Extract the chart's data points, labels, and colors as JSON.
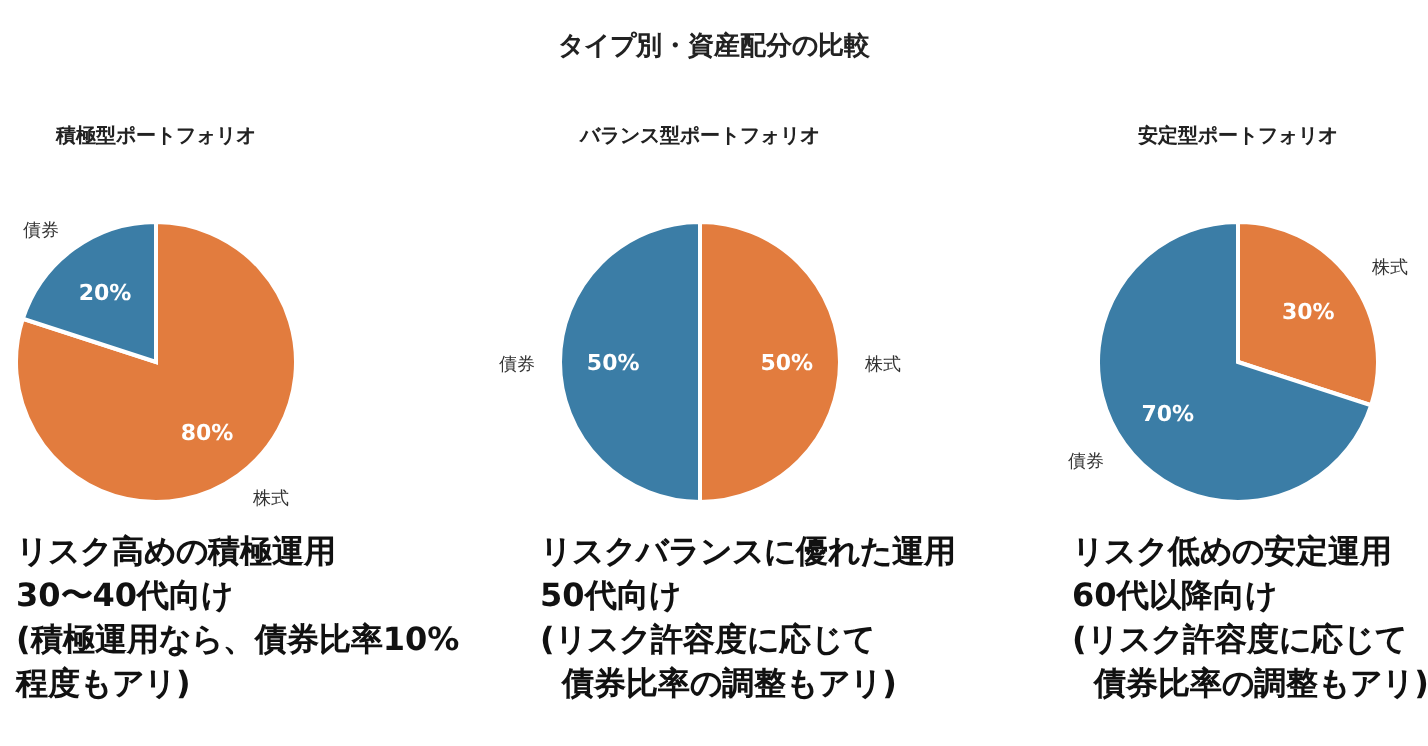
{
  "chart_data": [
    {
      "type": "pie",
      "subtitle": "積極型ポートフォリオ",
      "categories": [
        "株式",
        "債券"
      ],
      "values": [
        80,
        20
      ],
      "colors": [
        "#e27c3e",
        "#3b7da6"
      ],
      "value_labels": [
        "80%",
        "20%"
      ],
      "annotations": [
        "リスク高めの積極運用",
        "30〜40代向け",
        "(積極運用なら、債券比率10%",
        "程度もアリ)"
      ]
    },
    {
      "type": "pie",
      "title": "タイプ別・資産配分の比較",
      "subtitle": "バランス型ポートフォリオ",
      "categories": [
        "株式",
        "債券"
      ],
      "values": [
        50,
        50
      ],
      "colors": [
        "#e27c3e",
        "#3b7da6"
      ],
      "value_labels": [
        "50%",
        "50%"
      ],
      "annotations": [
        "リスクバランスに優れた運用",
        "50代向け",
        "(リスク許容度に応じて",
        "  債券比率の調整もアリ)"
      ]
    },
    {
      "type": "pie",
      "subtitle": "安定型ポートフォリオ",
      "categories": [
        "株式",
        "債券"
      ],
      "values": [
        30,
        70
      ],
      "colors": [
        "#e27c3e",
        "#3b7da6"
      ],
      "value_labels": [
        "30%",
        "70%"
      ],
      "annotations": [
        "リスク低めの安定運用",
        "60代以降向け",
        "(リスク許容度に応じて",
        "  債券比率の調整もアリ)"
      ]
    }
  ]
}
